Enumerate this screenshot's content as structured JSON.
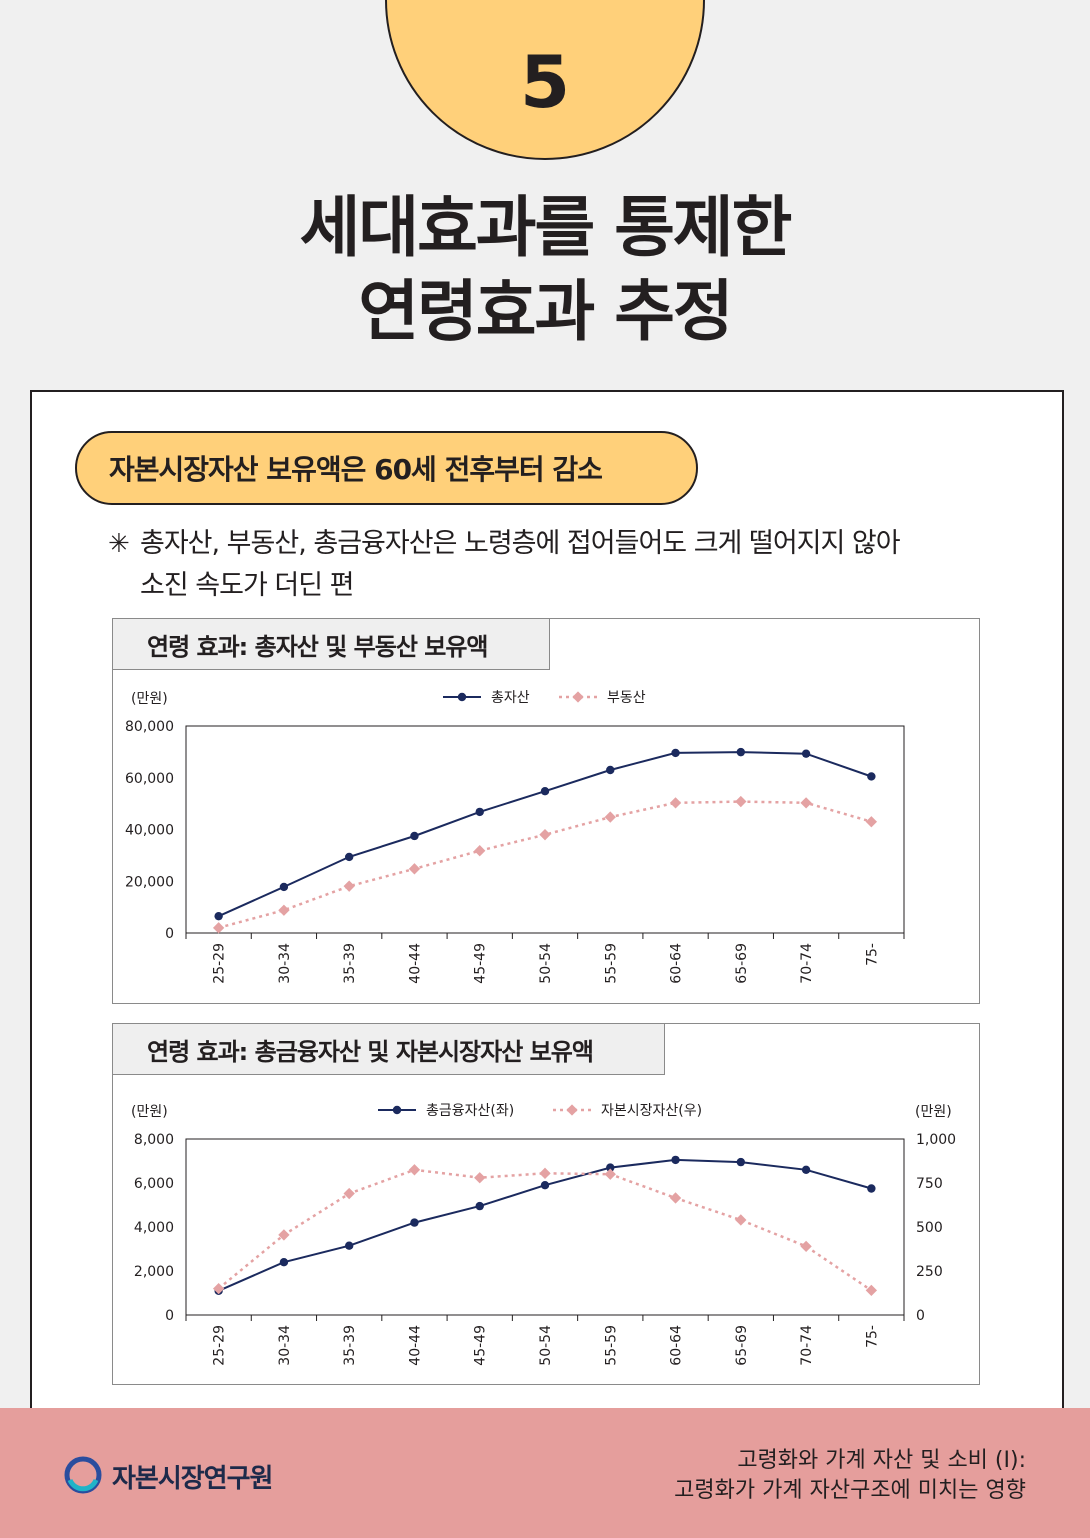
{
  "badge": {
    "number": "5"
  },
  "title": {
    "line1": "세대효과를 통제한",
    "line2": "연령효과 추정"
  },
  "section": {
    "pill": "자본시장자산 보유액은 60세 전후부터 감소",
    "note_line1": "총자산, 부동산, 총금융자산은 노령층에 접어들어도 크게 떨어지지 않아",
    "note_line2": "소진 속도가 더딘 편"
  },
  "colors": {
    "series_primary": "#1b2a5e",
    "series_secondary": "#e4a2a3",
    "accent": "#ffd07a",
    "footer": "#e59e9c"
  },
  "chart_data": [
    {
      "type": "line",
      "title": "연령 효과: 총자산 및 부동산 보유액",
      "ylabel": "(만원)",
      "categories": [
        "25-29",
        "30-34",
        "35-39",
        "40-44",
        "45-49",
        "50-54",
        "55-59",
        "60-64",
        "65-69",
        "70-74",
        "75-"
      ],
      "ylim": [
        0,
        80000
      ],
      "yticks": [
        "80,000",
        "60,000",
        "40,000",
        "20,000",
        "0"
      ],
      "legend_position": "top-center",
      "series": [
        {
          "name": "총자산",
          "style": "solid-circle",
          "values": [
            6500,
            17800,
            29400,
            37500,
            46800,
            54800,
            63000,
            69600,
            69900,
            69300,
            60500
          ]
        },
        {
          "name": "부동산",
          "style": "dotted-diamond",
          "values": [
            2000,
            8800,
            18100,
            24800,
            31800,
            38000,
            44800,
            50300,
            50800,
            50300,
            43000
          ]
        }
      ]
    },
    {
      "type": "line",
      "title": "연령 효과: 총금융자산 및 자본시장자산 보유액",
      "ylabel": "(만원)",
      "y2label": "(만원)",
      "categories": [
        "25-29",
        "30-34",
        "35-39",
        "40-44",
        "45-49",
        "50-54",
        "55-59",
        "60-64",
        "65-69",
        "70-74",
        "75-"
      ],
      "ylim": [
        0,
        8000
      ],
      "y2lim": [
        0,
        1000
      ],
      "yticks": [
        "8,000",
        "6,000",
        "4,000",
        "2,000",
        "0"
      ],
      "y2ticks": [
        "1,000",
        "750",
        "500",
        "250",
        "0"
      ],
      "legend_position": "top-center",
      "series": [
        {
          "name": "총금융자산(좌)",
          "axis": "left",
          "style": "solid-circle",
          "values": [
            1100,
            2400,
            3150,
            4200,
            4950,
            5900,
            6700,
            7050,
            6950,
            6600,
            5750
          ]
        },
        {
          "name": "자본시장자산(우)",
          "axis": "right",
          "style": "dotted-diamond",
          "values": [
            150,
            455,
            690,
            825,
            780,
            805,
            800,
            665,
            540,
            390,
            140
          ]
        }
      ]
    }
  ],
  "footer": {
    "org": "자본시장연구원",
    "report_line1": "고령화와 가계 자산 및 소비 (I):",
    "report_line2": "고령화가 가계 자산구조에 미치는 영향"
  }
}
